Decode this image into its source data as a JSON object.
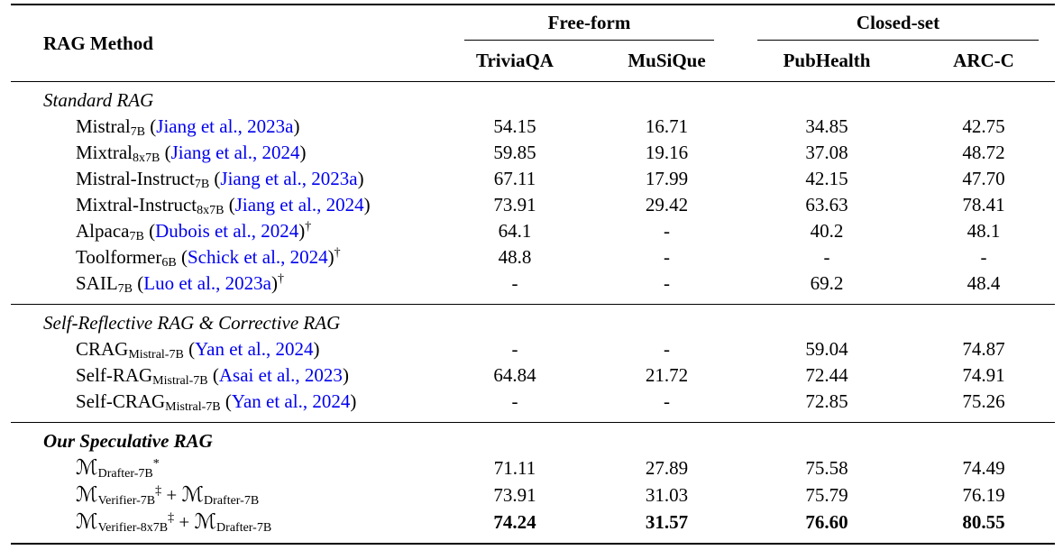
{
  "colors": {
    "citation_link": "#0000EE",
    "text": "#000000",
    "rule": "#000000",
    "background": "#ffffff"
  },
  "table": {
    "header": {
      "method_col": "RAG Method",
      "groups": [
        {
          "label": "Free-form",
          "columns": [
            "TriviaQA",
            "MuSiQue"
          ]
        },
        {
          "label": "Closed-set",
          "columns": [
            "PubHealth",
            "ARC-C"
          ]
        }
      ]
    },
    "sections": [
      {
        "title": "Standard RAG",
        "title_bold": false,
        "rows": [
          {
            "method": [
              {
                "t": "Mistral"
              },
              {
                "t": "7B",
                "s": "sub"
              },
              {
                "t": " ("
              },
              {
                "t": "Jiang et al., 2023a",
                "s": "cite"
              },
              {
                "t": ")"
              }
            ],
            "values": [
              "54.15",
              "16.71",
              "34.85",
              "42.75"
            ],
            "bold": false
          },
          {
            "method": [
              {
                "t": "Mixtral"
              },
              {
                "t": "8x7B",
                "s": "sub"
              },
              {
                "t": " ("
              },
              {
                "t": "Jiang et al., 2024",
                "s": "cite"
              },
              {
                "t": ")"
              }
            ],
            "values": [
              "59.85",
              "19.16",
              "37.08",
              "48.72"
            ],
            "bold": false
          },
          {
            "method": [
              {
                "t": "Mistral-Instruct"
              },
              {
                "t": "7B",
                "s": "sub"
              },
              {
                "t": " ("
              },
              {
                "t": "Jiang et al., 2023a",
                "s": "cite"
              },
              {
                "t": ")"
              }
            ],
            "values": [
              "67.11",
              "17.99",
              "42.15",
              "47.70"
            ],
            "bold": false
          },
          {
            "method": [
              {
                "t": "Mixtral-Instruct"
              },
              {
                "t": "8x7B",
                "s": "sub"
              },
              {
                "t": " ("
              },
              {
                "t": "Jiang et al., 2024",
                "s": "cite"
              },
              {
                "t": ")"
              }
            ],
            "values": [
              "73.91",
              "29.42",
              "63.63",
              "78.41"
            ],
            "bold": false
          },
          {
            "method": [
              {
                "t": "Alpaca"
              },
              {
                "t": "7B",
                "s": "sub"
              },
              {
                "t": " ("
              },
              {
                "t": "Dubois et al., 2024",
                "s": "cite"
              },
              {
                "t": ")"
              },
              {
                "t": "†",
                "s": "sup"
              }
            ],
            "values": [
              "64.1",
              "-",
              "40.2",
              "48.1"
            ],
            "bold": false
          },
          {
            "method": [
              {
                "t": "Toolformer"
              },
              {
                "t": "6B",
                "s": "sub"
              },
              {
                "t": " ("
              },
              {
                "t": "Schick et al., 2024",
                "s": "cite"
              },
              {
                "t": ")"
              },
              {
                "t": "†",
                "s": "sup"
              }
            ],
            "values": [
              "48.8",
              "-",
              "-",
              "-"
            ],
            "bold": false
          },
          {
            "method": [
              {
                "t": "SAIL"
              },
              {
                "t": "7B",
                "s": "sub"
              },
              {
                "t": " ("
              },
              {
                "t": "Luo et al., 2023a",
                "s": "cite"
              },
              {
                "t": ")"
              },
              {
                "t": "†",
                "s": "sup"
              }
            ],
            "values": [
              "-",
              "-",
              "69.2",
              "48.4"
            ],
            "bold": false
          }
        ]
      },
      {
        "title": "Self-Reflective RAG & Corrective RAG",
        "title_bold": false,
        "rows": [
          {
            "method": [
              {
                "t": "CRAG"
              },
              {
                "t": "Mistral-7B",
                "s": "sub"
              },
              {
                "t": " ("
              },
              {
                "t": "Yan et al., 2024",
                "s": "cite"
              },
              {
                "t": ")"
              }
            ],
            "values": [
              "-",
              "-",
              "59.04",
              "74.87"
            ],
            "bold": false
          },
          {
            "method": [
              {
                "t": "Self-RAG"
              },
              {
                "t": "Mistral-7B",
                "s": "sub"
              },
              {
                "t": " ("
              },
              {
                "t": "Asai et al., 2023",
                "s": "cite"
              },
              {
                "t": ")"
              }
            ],
            "values": [
              "64.84",
              "21.72",
              "72.44",
              "74.91"
            ],
            "bold": false
          },
          {
            "method": [
              {
                "t": "Self-CRAG"
              },
              {
                "t": "Mistral-7B",
                "s": "sub"
              },
              {
                "t": " ("
              },
              {
                "t": "Yan et al., 2024",
                "s": "cite"
              },
              {
                "t": ")"
              }
            ],
            "values": [
              "-",
              "-",
              "72.85",
              "75.26"
            ],
            "bold": false
          }
        ]
      },
      {
        "title": "Our Speculative RAG",
        "title_bold": true,
        "rows": [
          {
            "method": [
              {
                "t": "ℳ",
                "s": "cal"
              },
              {
                "t": "Drafter-7B",
                "s": "sub"
              },
              {
                "t": "*",
                "s": "sup"
              }
            ],
            "values": [
              "71.11",
              "27.89",
              "75.58",
              "74.49"
            ],
            "bold": false
          },
          {
            "method": [
              {
                "t": "ℳ",
                "s": "cal"
              },
              {
                "t": "Verifier-7B",
                "s": "sub"
              },
              {
                "t": "‡",
                "s": "sup"
              },
              {
                "t": " + "
              },
              {
                "t": "ℳ",
                "s": "cal"
              },
              {
                "t": "Drafter-7B",
                "s": "sub"
              }
            ],
            "values": [
              "73.91",
              "31.03",
              "75.79",
              "76.19"
            ],
            "bold": false
          },
          {
            "method": [
              {
                "t": "ℳ",
                "s": "cal"
              },
              {
                "t": "Verifier-8x7B",
                "s": "sub"
              },
              {
                "t": "‡",
                "s": "sup"
              },
              {
                "t": " + "
              },
              {
                "t": "ℳ",
                "s": "cal"
              },
              {
                "t": "Drafter-7B",
                "s": "sub"
              }
            ],
            "values": [
              "74.24",
              "31.57",
              "76.60",
              "80.55"
            ],
            "bold": true
          }
        ]
      }
    ]
  }
}
